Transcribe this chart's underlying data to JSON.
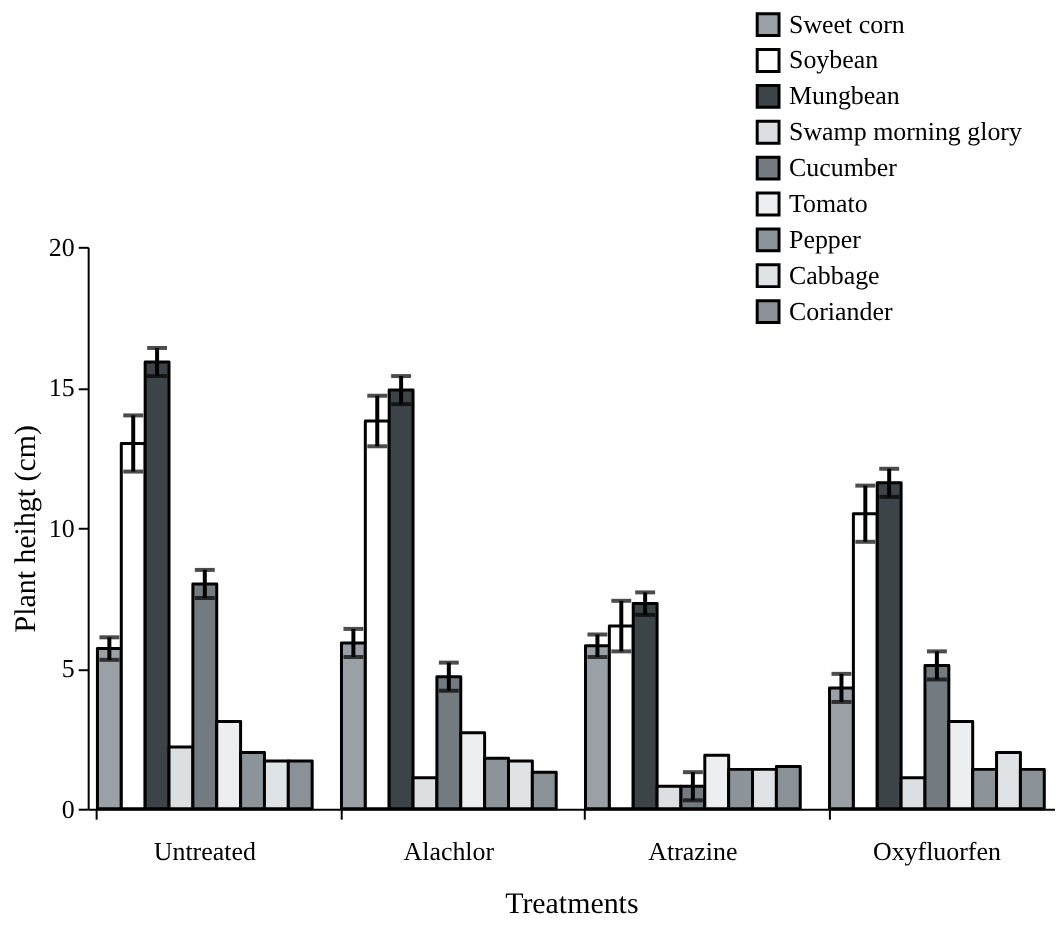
{
  "chart_data": {
    "type": "bar",
    "xlabel": "Treatments",
    "ylabel": "Plant heihgt (cm)",
    "categories": [
      "Untreated",
      "Alachlor",
      "Atrazine",
      "Oxyfluorfen"
    ],
    "ylim": [
      0,
      20
    ],
    "yticks": [
      0,
      5,
      10,
      15,
      20
    ],
    "grid": false,
    "legend": "top right",
    "series": [
      {
        "name": "Sweet corn",
        "color": "#9aa0a6",
        "values": [
          5.7,
          5.9,
          5.8,
          4.3
        ],
        "errors": [
          0.4,
          0.5,
          0.4,
          0.5
        ]
      },
      {
        "name": "Soybean",
        "color": "#ffffff",
        "values": [
          13.0,
          13.8,
          6.5,
          10.5
        ],
        "errors": [
          1.0,
          0.9,
          0.9,
          1.0
        ]
      },
      {
        "name": "Mungbean",
        "color": "#3d4448",
        "values": [
          15.9,
          14.9,
          7.3,
          11.6
        ],
        "errors": [
          0.5,
          0.5,
          0.4,
          0.5
        ]
      },
      {
        "name": "Swamp morning glory",
        "color": "#dcdfe2",
        "values": [
          2.2,
          1.1,
          0.8,
          1.1
        ]
      },
      {
        "name": "Cucumber",
        "color": "#737b80",
        "values": [
          8.0,
          4.7,
          0.8,
          5.1
        ],
        "errors": [
          0.5,
          0.5,
          0.5,
          0.5
        ]
      },
      {
        "name": "Tomato",
        "color": "#eceef0",
        "values": [
          3.1,
          2.7,
          1.9,
          3.1
        ]
      },
      {
        "name": "Pepper",
        "color": "#8c9399",
        "values": [
          2.0,
          1.8,
          1.4,
          1.4
        ]
      },
      {
        "name": "Cabbage",
        "color": "#e0e3e6",
        "values": [
          1.7,
          1.7,
          1.4,
          2.0
        ]
      },
      {
        "name": "Coriander",
        "color": "#8a9298",
        "values": [
          1.7,
          1.3,
          1.5,
          1.4
        ]
      }
    ]
  }
}
